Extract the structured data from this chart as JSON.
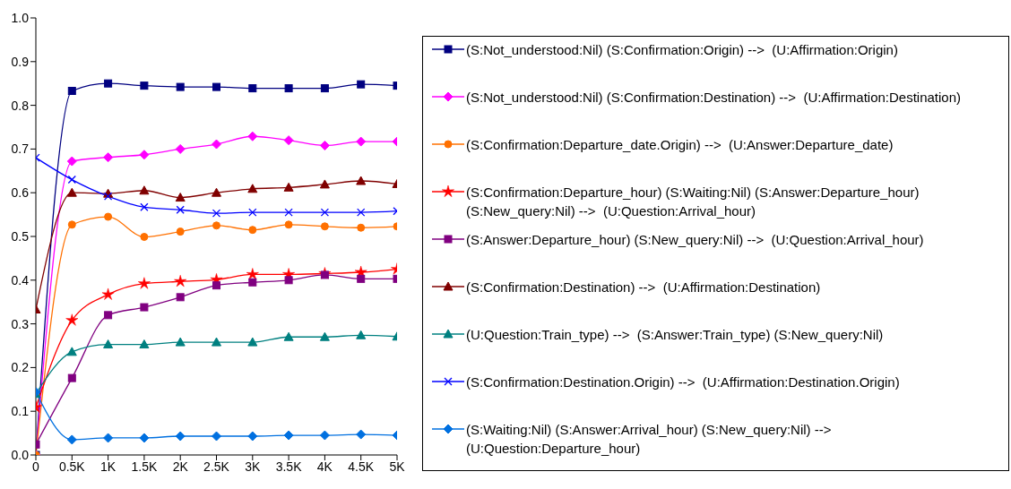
{
  "chart_data": {
    "type": "line",
    "x": [
      0,
      500,
      1000,
      1500,
      2000,
      2500,
      3000,
      3500,
      4000,
      4500,
      5000
    ],
    "xlim": [
      0,
      5000
    ],
    "xticks": [
      0,
      {
        "value": 500,
        "label": "0.5K"
      },
      {
        "value": 1000,
        "label": "1K"
      },
      {
        "value": 1500,
        "label": "1.5K"
      },
      {
        "value": 2000,
        "label": "2K"
      },
      {
        "value": 2500,
        "label": "2.5K"
      },
      {
        "value": 3000,
        "label": "3K"
      },
      {
        "value": 3500,
        "label": "3.5K"
      },
      {
        "value": 4000,
        "label": "4K"
      },
      {
        "value": 4500,
        "label": "4.5K"
      },
      {
        "value": 5000,
        "label": "5K"
      }
    ],
    "ylim": [
      0,
      1
    ],
    "yticks": [
      {
        "value": 0,
        "label": "0.0"
      },
      0.1,
      0.2,
      0.3,
      0.4,
      0.5,
      0.6,
      0.7,
      0.8,
      0.9,
      {
        "value": 1,
        "label": "1.0"
      }
    ],
    "grid": false,
    "legend": "right",
    "series": [
      {
        "name": "(S:Not_understood:Nil) (S:Confirmation:Origin) -->  (U:Affirmation:Origin)",
        "color": "#000080",
        "marker": "square",
        "values": [
          0.0,
          0.833,
          0.85,
          0.845,
          0.842,
          0.842,
          0.839,
          0.839,
          0.839,
          0.848,
          0.845
        ]
      },
      {
        "name": "(S:Not_understood:Nil) (S:Confirmation:Destination) -->  (U:Affirmation:Destination)",
        "color": "#ff00ff",
        "marker": "diamond",
        "values": [
          0.0,
          0.672,
          0.681,
          0.687,
          0.7,
          0.711,
          0.729,
          0.72,
          0.708,
          0.717,
          0.717
        ]
      },
      {
        "name": "(S:Confirmation:Departure_date.Origin) -->  (U:Answer:Departure_date)",
        "color": "#ff7000",
        "marker": "circle",
        "values": [
          0.0,
          0.527,
          0.545,
          0.499,
          0.511,
          0.525,
          0.515,
          0.527,
          0.523,
          0.52,
          0.523
        ]
      },
      {
        "name": "(S:Confirmation:Departure_hour) (S:Waiting:Nil) (S:Answer:Departure_hour) (S:New_query:Nil) -->  (U:Question:Arrival_hour)",
        "color": "#ff0000",
        "marker": "star",
        "values": [
          0.109,
          0.308,
          0.367,
          0.392,
          0.397,
          0.401,
          0.413,
          0.413,
          0.415,
          0.418,
          0.425
        ]
      },
      {
        "name": "(S:Answer:Departure_hour) (S:New_query:Nil) -->  (U:Question:Arrival_hour)",
        "color": "#800080",
        "marker": "square",
        "values": [
          0.024,
          0.176,
          0.32,
          0.338,
          0.361,
          0.388,
          0.395,
          0.4,
          0.412,
          0.403,
          0.403
        ]
      },
      {
        "name": "(S:Confirmation:Destination) -->  (U:Affirmation:Destination)",
        "color": "#800000",
        "marker": "triangle",
        "values": [
          0.333,
          0.6,
          0.598,
          0.605,
          0.589,
          0.6,
          0.609,
          0.612,
          0.619,
          0.627,
          0.62
        ]
      },
      {
        "name": "(U:Question:Train_type) -->  (S:Answer:Train_type) (S:New_query:Nil)",
        "color": "#008080",
        "marker": "triangle",
        "values": [
          0.14,
          0.236,
          0.253,
          0.253,
          0.258,
          0.258,
          0.258,
          0.27,
          0.27,
          0.274,
          0.271
        ]
      },
      {
        "name": "(S:Confirmation:Destination.Origin) -->  (U:Affirmation:Destination.Origin)",
        "color": "#0000ff",
        "marker": "cross",
        "values": [
          0.68,
          0.63,
          0.592,
          0.567,
          0.561,
          0.553,
          0.555,
          0.555,
          0.555,
          0.555,
          0.558
        ]
      },
      {
        "name": "(S:Waiting:Nil) (S:Answer:Arrival_hour) (S:New_query:Nil) -->  (U:Question:Departure_hour)",
        "color": "#0070e0",
        "marker": "diamond",
        "values": [
          0.144,
          0.035,
          0.039,
          0.039,
          0.043,
          0.043,
          0.043,
          0.045,
          0.045,
          0.047,
          0.045
        ]
      }
    ]
  }
}
